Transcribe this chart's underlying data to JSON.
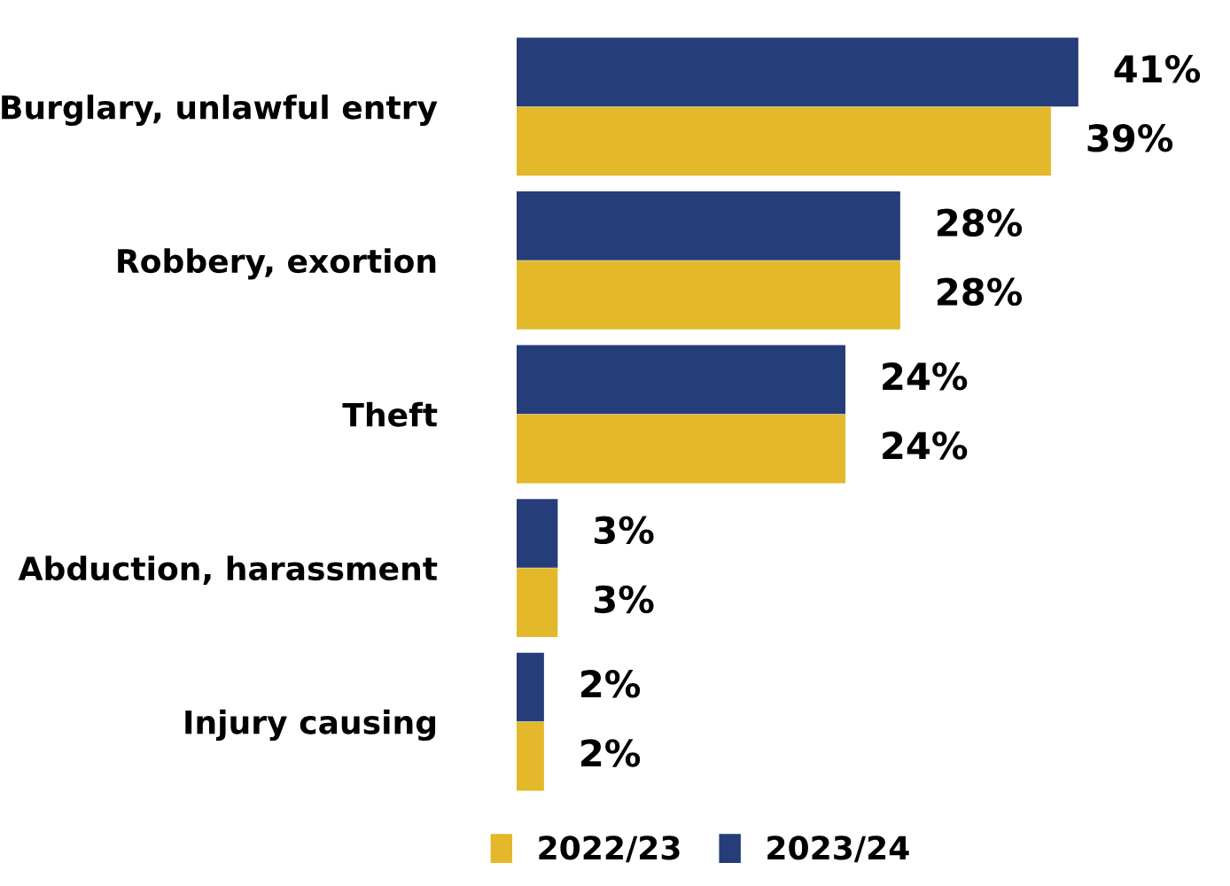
{
  "chart_data": {
    "type": "bar",
    "orientation": "horizontal",
    "categories": [
      "Burglary, unlawful entry",
      "Robbery, exortion",
      "Theft",
      "Abduction, harassment",
      "Injury causing"
    ],
    "series": [
      {
        "name": "2022/23",
        "color": "#e3b82a",
        "values": [
          39,
          28,
          24,
          3,
          2
        ],
        "value_labels": [
          "39%",
          "28%",
          "24%",
          "3%",
          "2%"
        ]
      },
      {
        "name": "2023/24",
        "color": "#253d78",
        "values": [
          41,
          28,
          24,
          3,
          2
        ],
        "value_labels": [
          "41%",
          "28%",
          "24%",
          "3%",
          "2%"
        ]
      }
    ],
    "legend": "bottom",
    "grid": false
  }
}
